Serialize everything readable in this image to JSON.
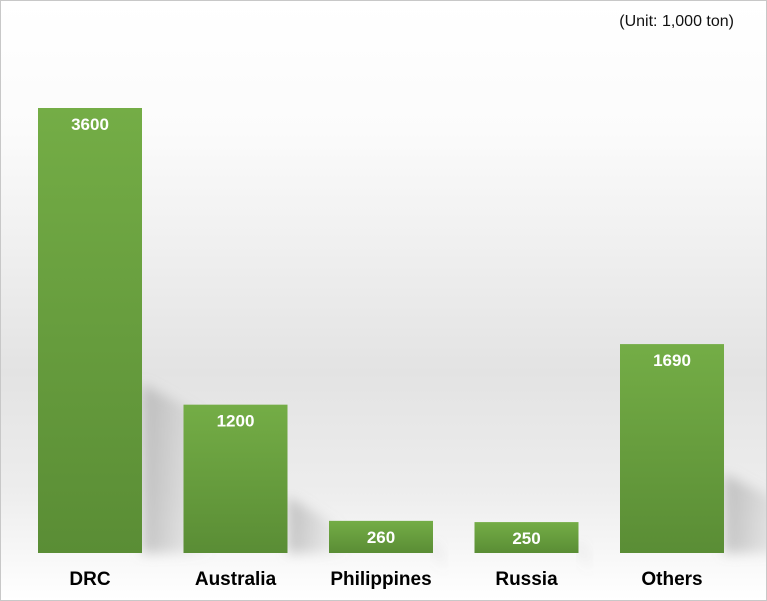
{
  "unit_label": "(Unit: 1,000 ton)",
  "colors": {
    "bar_top": "#74ad46",
    "bar_bottom": "#5a8d35",
    "label_text": "#ffffff",
    "category_text": "#000000"
  },
  "chart_data": {
    "type": "bar",
    "title": "",
    "xlabel": "",
    "ylabel": "",
    "categories": [
      "DRC",
      "Australia",
      "Philippines",
      "Russia",
      "Others"
    ],
    "values": [
      3600,
      1200,
      260,
      250,
      1690
    ],
    "value_labels": [
      "3600",
      "1200",
      "260",
      "250",
      "1690"
    ],
    "ylim": [
      0,
      3600
    ],
    "grid": false,
    "legend": "none"
  }
}
